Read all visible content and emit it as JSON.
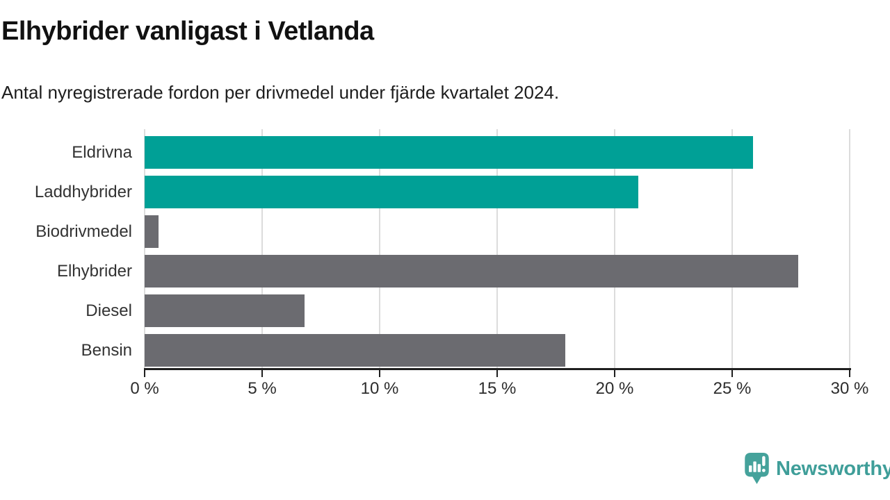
{
  "chart_data": {
    "type": "bar",
    "orientation": "horizontal",
    "title": "Elhybrider vanligast i Vetlanda",
    "subtitle": "Antal nyregistrerade fordon per drivmedel under fjärde kvartalet 2024.",
    "categories": [
      "Eldrivna",
      "Laddhybrider",
      "Biodrivmedel",
      "Elhybrider",
      "Diesel",
      "Bensin"
    ],
    "values": [
      25.9,
      21.0,
      0.6,
      27.8,
      6.8,
      17.9
    ],
    "unit": "%",
    "xlim": [
      0,
      30
    ],
    "x_tick_values": [
      0,
      5,
      10,
      15,
      20,
      25,
      30
    ],
    "x_tick_labels": [
      "0 %",
      "5 %",
      "10 %",
      "15 %",
      "20 %",
      "25 %",
      "30 %"
    ],
    "bar_colors": [
      "#00a096",
      "#00a096",
      "#6b6b70",
      "#6b6b70",
      "#6b6b70",
      "#6b6b70"
    ],
    "colors": {
      "highlight": "#00a096",
      "default": "#6b6b70",
      "gridline": "#dcdcdc",
      "axis": "#1f1f1f"
    },
    "grid": "vertical-behind-bars",
    "legend": "none"
  },
  "branding": {
    "logo_text": "Newsworthy",
    "logo_color": "#3f9e99",
    "logo_icon": "speech-bubble-bar-chart-icon"
  }
}
